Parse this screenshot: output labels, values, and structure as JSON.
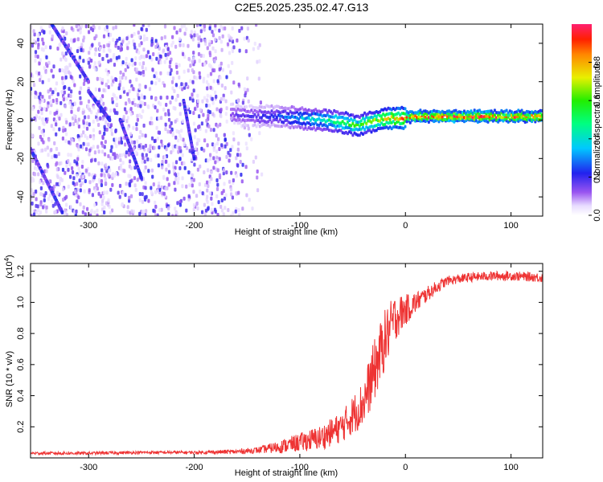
{
  "figure_title": "C2E5.2025.235.02.47.G13",
  "chart_data": [
    {
      "type": "heatmap",
      "name": "spectrogram",
      "xlabel": "Height of straight line (km)",
      "ylabel": "Frequency (Hz)",
      "xlim": [
        -355,
        130
      ],
      "ylim": [
        -50,
        50
      ],
      "xticks": [
        -300,
        -200,
        -100,
        0,
        100
      ],
      "xtick_labels": [
        "-300",
        "-200",
        "-100",
        "0",
        "100"
      ],
      "yticks": [
        -40,
        -20,
        0,
        20,
        40
      ],
      "ytick_labels": [
        "-40",
        "-20",
        "0",
        "20",
        "40"
      ],
      "signal_band": {
        "x": [
          -165,
          -140,
          -120,
          -100,
          -80,
          -60,
          -45,
          -35,
          -25,
          -15,
          -5,
          10,
          40,
          70,
          100,
          130
        ],
        "freq": [
          3,
          2,
          2,
          1,
          0,
          -1,
          -3,
          -1,
          0,
          1,
          1,
          2,
          2,
          2,
          2,
          2
        ],
        "amplitude": [
          0.15,
          0.2,
          0.25,
          0.35,
          0.45,
          0.55,
          0.6,
          0.6,
          0.7,
          0.8,
          0.85,
          0.9,
          0.95,
          0.95,
          0.9,
          0.85
        ]
      },
      "noise_region_x": [
        -355,
        -130
      ],
      "colorbar": {
        "label": "Normalized spectral amplitude",
        "range": [
          0,
          1
        ],
        "ticks": [
          0.0,
          0.2,
          0.4,
          0.6,
          0.8
        ],
        "tick_labels": [
          "0.0",
          "0.2",
          "0.4",
          "0.6",
          "0.8"
        ]
      }
    },
    {
      "type": "line",
      "name": "snr",
      "xlabel": "Height of straight line (km)",
      "ylabel": "SNR (10 * v/v)",
      "y_multiplier": "(x10^4)",
      "multiplier_base": "(x10",
      "multiplier_exp": "4",
      "multiplier_close": ")",
      "xlim": [
        -355,
        130
      ],
      "ylim": [
        0,
        1.25
      ],
      "xticks": [
        -300,
        -200,
        -100,
        0,
        100
      ],
      "xtick_labels": [
        "-300",
        "-200",
        "-100",
        "0",
        "100"
      ],
      "yticks": [
        0.2,
        0.4,
        0.6,
        0.8,
        1.0,
        1.2
      ],
      "ytick_labels": [
        "0.2",
        "0.4",
        "0.6",
        "0.8",
        "1.0",
        "1.2"
      ],
      "series": [
        {
          "name": "SNR",
          "color": "#ee3333",
          "x": [
            -355,
            -300,
            -250,
            -200,
            -160,
            -140,
            -120,
            -100,
            -80,
            -60,
            -40,
            -30,
            -20,
            -10,
            0,
            10,
            20,
            30,
            40,
            60,
            80,
            100,
            130
          ],
          "y": [
            0.03,
            0.03,
            0.035,
            0.035,
            0.04,
            0.05,
            0.07,
            0.1,
            0.13,
            0.2,
            0.35,
            0.55,
            0.75,
            0.9,
            0.95,
            1.0,
            1.05,
            1.1,
            1.14,
            1.16,
            1.17,
            1.17,
            1.16
          ],
          "noise_amplitude": [
            0.01,
            0.01,
            0.01,
            0.01,
            0.015,
            0.02,
            0.04,
            0.06,
            0.08,
            0.1,
            0.15,
            0.2,
            0.2,
            0.15,
            0.1,
            0.07,
            0.05,
            0.04,
            0.03,
            0.03,
            0.03,
            0.03,
            0.03
          ]
        }
      ]
    }
  ]
}
